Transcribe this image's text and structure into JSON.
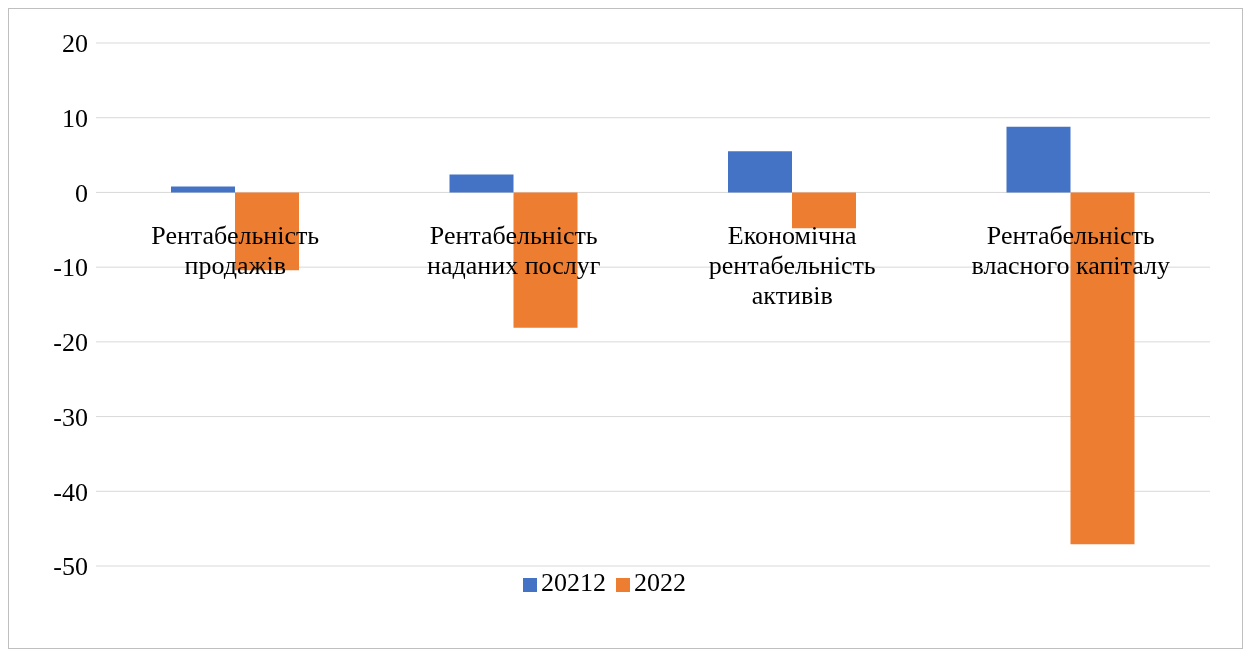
{
  "chart_data": {
    "type": "bar",
    "categories": [
      "Рентабельність продажів",
      "Рентабельність наданих послуг",
      "Економічна рентабельність активів",
      "Рентабельність власного капіталу"
    ],
    "series": [
      {
        "name": "20212",
        "color": "#4472c4",
        "values": [
          0.8,
          2.4,
          5.5,
          8.8
        ]
      },
      {
        "name": "2022",
        "color": "#ed7d31",
        "values": [
          -10.4,
          -18.1,
          -4.8,
          -47.1
        ]
      }
    ],
    "ylim": [
      -50,
      20
    ],
    "yticks": [
      -50,
      -40,
      -30,
      -20,
      -10,
      0,
      10,
      20
    ],
    "grid": "y",
    "legend": "bottom"
  }
}
